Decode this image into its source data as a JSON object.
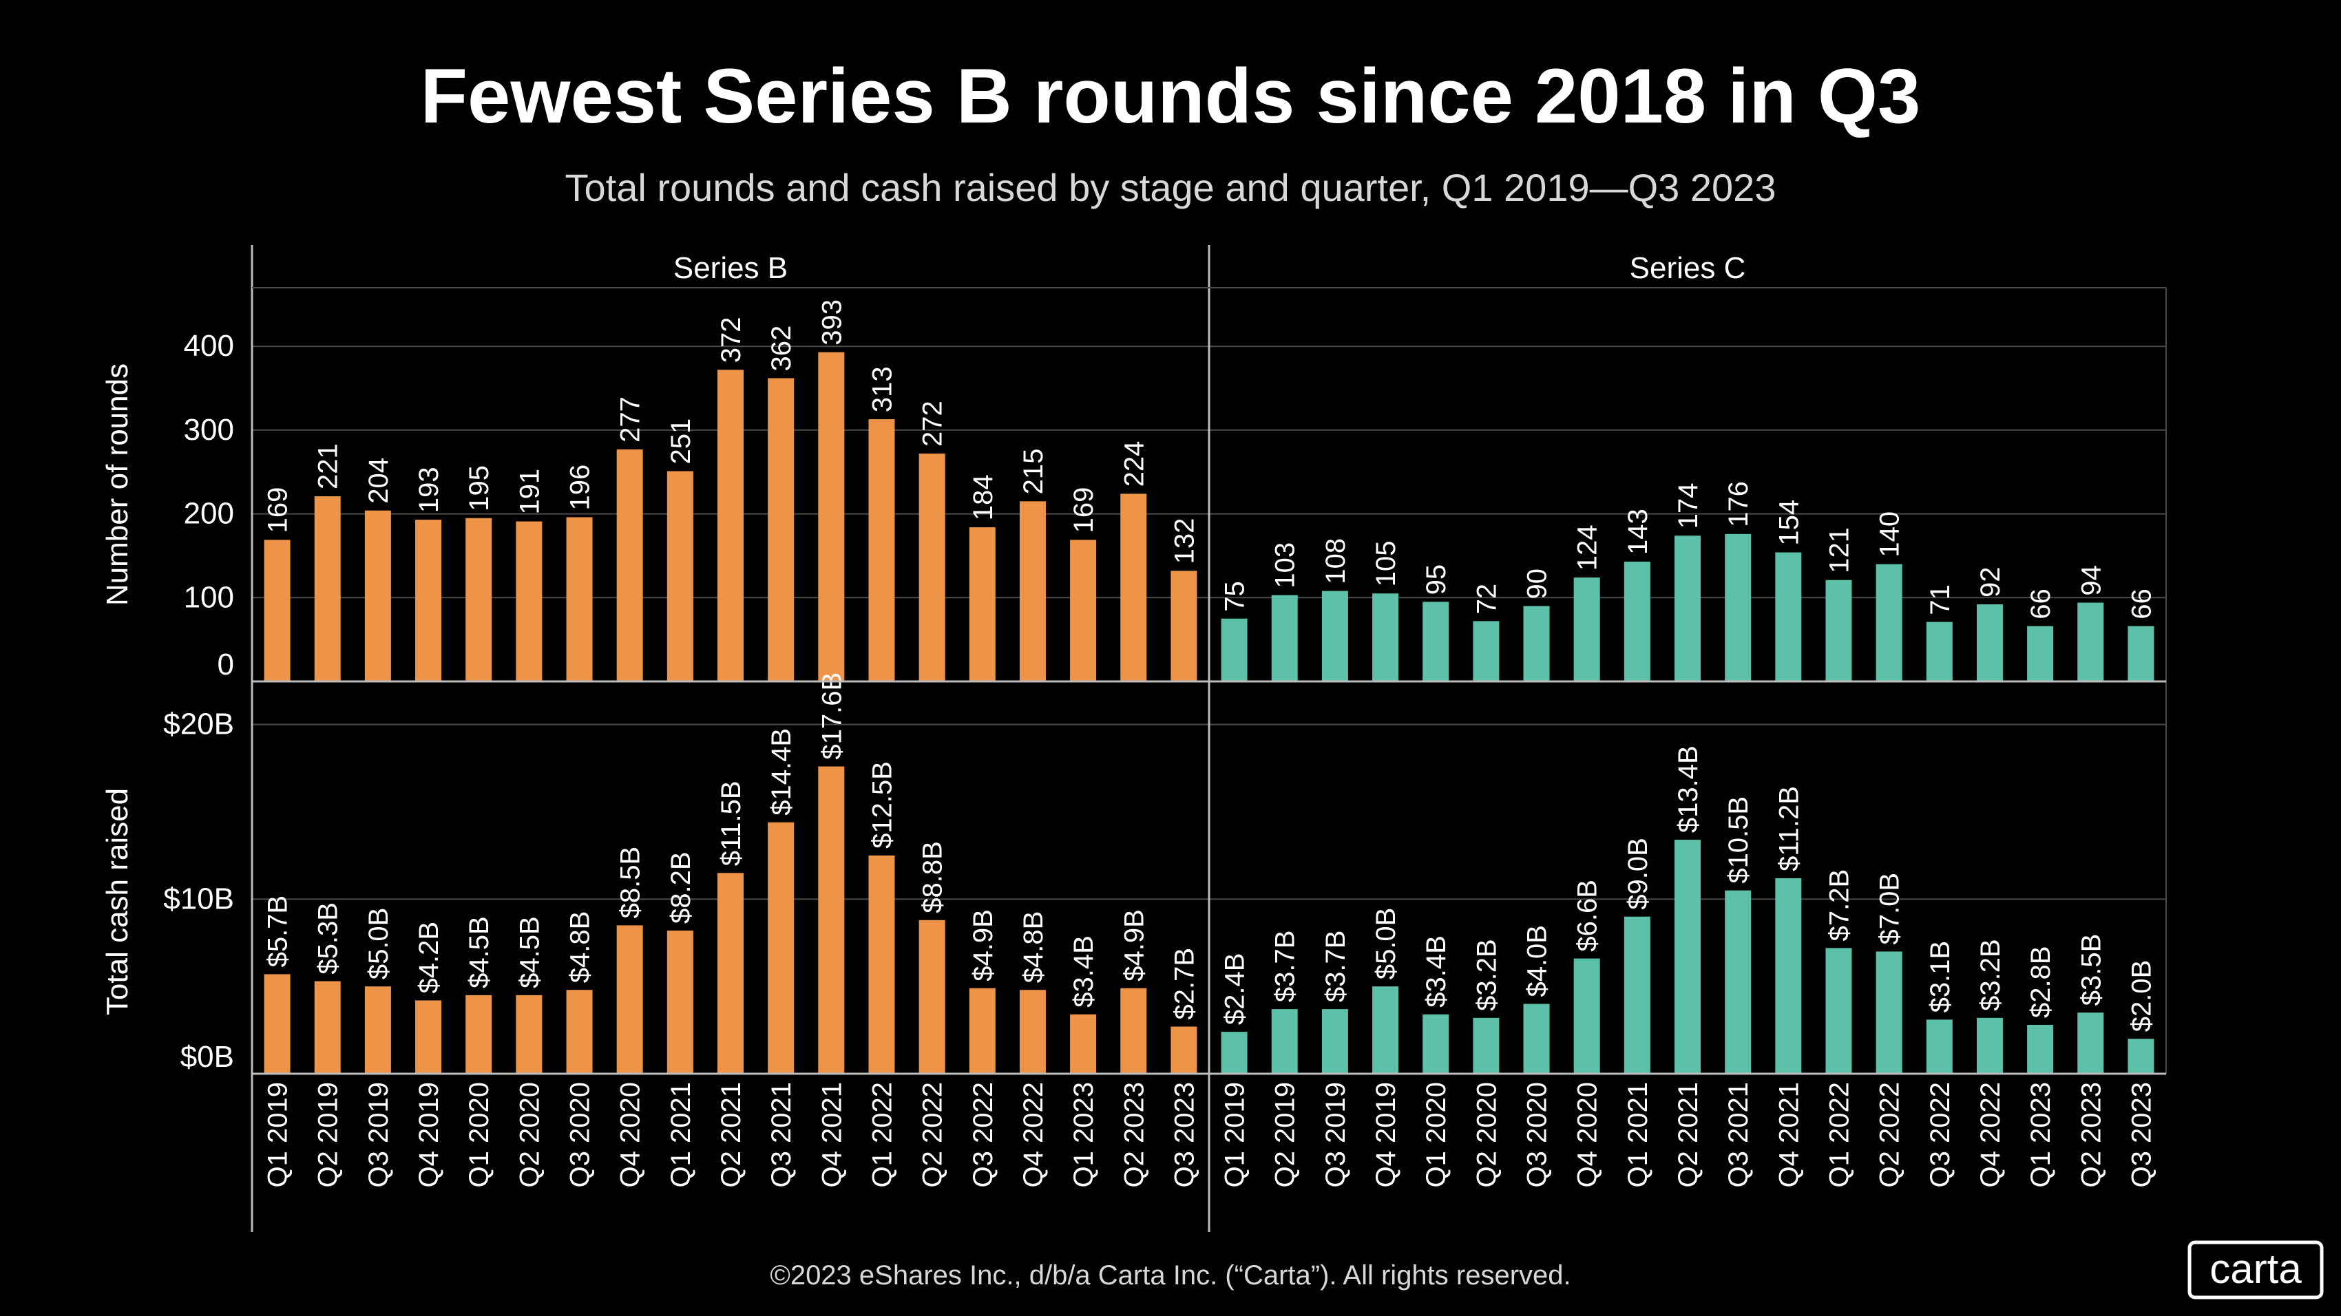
{
  "title": "Fewest Series B rounds since 2018 in Q3",
  "subtitle": "Total rounds and cash raised by stage and quarter, Q1 2019—Q3 2023",
  "footer": "©2023 eShares Inc., d/b/a Carta Inc. (“Carta”). All rights reserved.",
  "logo": "carta",
  "colors": {
    "background": "#000000",
    "series_b": "#EE9449",
    "series_c": "#5DC1AA",
    "text": "#FFFFFF",
    "grid": "#4A4A4A",
    "axis": "#BDBDBD"
  },
  "chart_data": {
    "type": "bar",
    "layout": "facet-grid",
    "categories": [
      "Q1 2019",
      "Q2 2019",
      "Q3 2019",
      "Q4 2019",
      "Q1 2020",
      "Q2 2020",
      "Q3 2020",
      "Q4 2020",
      "Q1 2021",
      "Q2 2021",
      "Q3 2021",
      "Q4 2021",
      "Q1 2022",
      "Q2 2022",
      "Q3 2022",
      "Q4 2022",
      "Q1 2023",
      "Q2 2023",
      "Q3 2023"
    ],
    "panels": [
      "Series B",
      "Series C"
    ],
    "rows": [
      {
        "name": "rounds",
        "ylabel": "Number of rounds",
        "ylim": [
          0,
          470
        ],
        "ticks": [
          0,
          100,
          200,
          300,
          400
        ],
        "tick_labels": [
          "0",
          "100",
          "200",
          "300",
          "400"
        ],
        "series": [
          {
            "name": "Series B",
            "values": [
              169,
              221,
              204,
              193,
              195,
              191,
              196,
              277,
              251,
              372,
              362,
              393,
              313,
              272,
              184,
              215,
              169,
              224,
              132
            ],
            "labels": [
              "169",
              "221",
              "204",
              "193",
              "195",
              "191",
              "196",
              "277",
              "251",
              "372",
              "362",
              "393",
              "313",
              "272",
              "184",
              "215",
              "169",
              "224",
              "132"
            ]
          },
          {
            "name": "Series C",
            "values": [
              75,
              103,
              108,
              105,
              95,
              72,
              90,
              124,
              143,
              174,
              176,
              154,
              121,
              140,
              71,
              92,
              66,
              94,
              66
            ],
            "labels": [
              "75",
              "103",
              "108",
              "105",
              "95",
              "72",
              "90",
              "124",
              "143",
              "174",
              "176",
              "154",
              "121",
              "140",
              "71",
              "92",
              "66",
              "94",
              "66"
            ]
          }
        ]
      },
      {
        "name": "cash",
        "ylabel": "Total cash raised",
        "ylim": [
          0,
          20.5
        ],
        "ticks": [
          0,
          10,
          20
        ],
        "tick_labels": [
          "$0B",
          "$10B",
          "$20B"
        ],
        "series": [
          {
            "name": "Series B",
            "values": [
              5.7,
              5.3,
              5.0,
              4.2,
              4.5,
              4.5,
              4.8,
              8.5,
              8.2,
              11.5,
              14.4,
              17.6,
              12.5,
              8.8,
              4.9,
              4.8,
              3.4,
              4.9,
              2.7
            ],
            "labels": [
              "$5.7B",
              "$5.3B",
              "$5.0B",
              "$4.2B",
              "$4.5B",
              "$4.5B",
              "$4.8B",
              "$8.5B",
              "$8.2B",
              "$11.5B",
              "$14.4B",
              "$17.6B",
              "$12.5B",
              "$8.8B",
              "$4.9B",
              "$4.8B",
              "$3.4B",
              "$4.9B",
              "$2.7B"
            ]
          },
          {
            "name": "Series C",
            "values": [
              2.4,
              3.7,
              3.7,
              5.0,
              3.4,
              3.2,
              4.0,
              6.6,
              9.0,
              13.4,
              10.5,
              11.2,
              7.2,
              7.0,
              3.1,
              3.2,
              2.8,
              3.5,
              2.0
            ],
            "labels": [
              "$2.4B",
              "$3.7B",
              "$3.7B",
              "$5.0B",
              "$3.4B",
              "$3.2B",
              "$4.0B",
              "$6.6B",
              "$9.0B",
              "$13.4B",
              "$10.5B",
              "$11.2B",
              "$7.2B",
              "$7.0B",
              "$3.1B",
              "$3.2B",
              "$2.8B",
              "$3.5B",
              "$2.0B"
            ]
          }
        ]
      }
    ]
  }
}
